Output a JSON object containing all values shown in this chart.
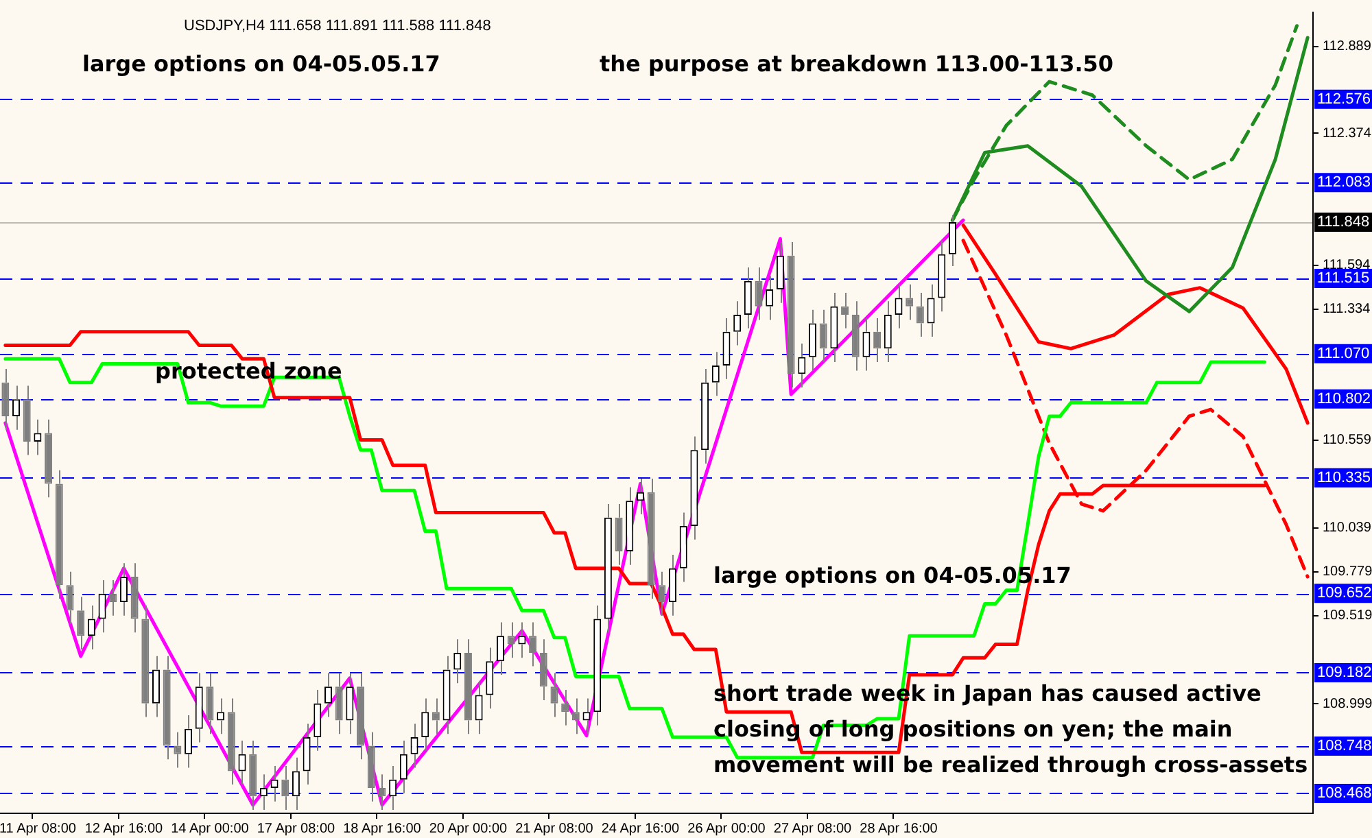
{
  "chart_data": {
    "type": "candlestick",
    "title": "USDJPY,H4 111.658 111.891 111.588 111.848",
    "categories": [
      null,
      null,
      null,
      "11 Apr 08:00",
      null,
      null,
      null,
      null,
      null,
      null,
      null,
      "12 Apr 16:00",
      null,
      null,
      null,
      null,
      null,
      null,
      null,
      "14 Apr 00:00",
      null,
      null,
      null,
      null,
      null,
      null,
      null,
      "17 Apr 08:00",
      null,
      null,
      null,
      null,
      null,
      null,
      null,
      "18 Apr 16:00",
      null,
      null,
      null,
      null,
      null,
      null,
      null,
      "20 Apr 00:00",
      null,
      null,
      null,
      null,
      null,
      null,
      null,
      "21 Apr 08:00",
      null,
      null,
      null,
      null,
      null,
      null,
      null,
      "24 Apr 16:00",
      null,
      null,
      null,
      null,
      null,
      null,
      null,
      "26 Apr 00:00",
      null,
      null,
      null,
      null,
      null,
      null,
      null,
      "27 Apr 08:00",
      null,
      null,
      null,
      null,
      null,
      null,
      null,
      "28 Apr 16:00",
      null,
      null,
      null,
      null,
      null,
      null,
      null,
      null,
      null,
      null,
      null,
      null,
      null,
      null,
      null,
      null,
      null,
      null,
      null,
      null,
      null,
      null,
      null,
      null,
      null,
      null,
      null,
      null,
      null,
      null,
      null,
      null,
      null,
      null,
      null,
      null,
      null,
      null
    ],
    "ohlc": [
      [
        110.9,
        110.98,
        110.62,
        110.7
      ],
      [
        110.7,
        110.88,
        110.62,
        110.8
      ],
      [
        110.8,
        110.88,
        110.47,
        110.55
      ],
      [
        110.55,
        110.68,
        110.47,
        110.6
      ],
      [
        110.6,
        110.68,
        110.22,
        110.3
      ],
      [
        110.3,
        110.38,
        109.62,
        109.7
      ],
      [
        109.7,
        109.78,
        109.47,
        109.55
      ],
      [
        109.55,
        109.63,
        109.32,
        109.4
      ],
      [
        109.4,
        109.58,
        109.32,
        109.5
      ],
      [
        109.5,
        109.73,
        109.42,
        109.65
      ],
      [
        109.65,
        109.73,
        109.52,
        109.6
      ],
      [
        109.6,
        109.83,
        109.52,
        109.75
      ],
      [
        109.75,
        109.83,
        109.42,
        109.5
      ],
      [
        109.5,
        109.58,
        108.92,
        109.0
      ],
      [
        109.0,
        109.28,
        108.92,
        109.2
      ],
      [
        109.2,
        109.28,
        108.67,
        108.75
      ],
      [
        108.75,
        108.83,
        108.62,
        108.7
      ],
      [
        108.7,
        108.93,
        108.62,
        108.85
      ],
      [
        108.85,
        109.18,
        108.77,
        109.1
      ],
      [
        109.1,
        109.18,
        108.82,
        108.9
      ],
      [
        108.9,
        109.03,
        108.82,
        108.95
      ],
      [
        108.95,
        109.03,
        108.52,
        108.6
      ],
      [
        108.6,
        108.78,
        108.52,
        108.7
      ],
      [
        108.7,
        108.78,
        108.37,
        108.45
      ],
      [
        108.45,
        108.58,
        108.37,
        108.5
      ],
      [
        108.5,
        108.63,
        108.42,
        108.55
      ],
      [
        108.55,
        108.63,
        108.37,
        108.45
      ],
      [
        108.45,
        108.68,
        108.37,
        108.6
      ],
      [
        108.6,
        108.88,
        108.52,
        108.8
      ],
      [
        108.8,
        109.08,
        108.72,
        109.0
      ],
      [
        109.0,
        109.18,
        108.92,
        109.1
      ],
      [
        109.1,
        109.18,
        108.82,
        108.9
      ],
      [
        108.9,
        109.18,
        108.82,
        109.1
      ],
      [
        109.1,
        109.18,
        108.67,
        108.75
      ],
      [
        108.75,
        108.83,
        108.42,
        108.5
      ],
      [
        108.5,
        108.58,
        108.37,
        108.45
      ],
      [
        108.45,
        108.63,
        108.37,
        108.55
      ],
      [
        108.55,
        108.78,
        108.47,
        108.7
      ],
      [
        108.7,
        108.88,
        108.62,
        108.8
      ],
      [
        108.8,
        109.03,
        108.72,
        108.95
      ],
      [
        108.95,
        109.03,
        108.82,
        108.9
      ],
      [
        108.9,
        109.28,
        108.82,
        109.2
      ],
      [
        109.2,
        109.38,
        109.12,
        109.3
      ],
      [
        109.3,
        109.38,
        108.82,
        108.9
      ],
      [
        108.9,
        109.13,
        108.82,
        109.05
      ],
      [
        109.05,
        109.33,
        108.97,
        109.25
      ],
      [
        109.25,
        109.48,
        109.17,
        109.4
      ],
      [
        109.4,
        109.48,
        109.27,
        109.35
      ],
      [
        109.35,
        109.48,
        109.27,
        109.4
      ],
      [
        109.4,
        109.48,
        109.22,
        109.3
      ],
      [
        109.3,
        109.38,
        109.02,
        109.1
      ],
      [
        109.1,
        109.18,
        108.92,
        109.0
      ],
      [
        109.0,
        109.08,
        108.87,
        108.95
      ],
      [
        108.95,
        109.03,
        108.82,
        108.9
      ],
      [
        108.9,
        109.03,
        108.82,
        108.95
      ],
      [
        108.95,
        109.58,
        108.87,
        109.5
      ],
      [
        109.5,
        110.18,
        109.42,
        110.1
      ],
      [
        110.1,
        110.18,
        109.82,
        109.9
      ],
      [
        109.9,
        110.28,
        109.82,
        110.2
      ],
      [
        110.2,
        110.33,
        110.12,
        110.25
      ],
      [
        110.25,
        110.33,
        109.62,
        109.7
      ],
      [
        109.7,
        109.78,
        109.52,
        109.6
      ],
      [
        109.6,
        109.88,
        109.52,
        109.8
      ],
      [
        109.8,
        110.13,
        109.72,
        110.05
      ],
      [
        110.05,
        110.58,
        109.97,
        110.5
      ],
      [
        110.5,
        110.98,
        110.42,
        110.9
      ],
      [
        110.9,
        111.08,
        110.82,
        111.0
      ],
      [
        111.0,
        111.28,
        110.92,
        111.2
      ],
      [
        111.2,
        111.38,
        111.12,
        111.3
      ],
      [
        111.3,
        111.58,
        111.22,
        111.5
      ],
      [
        111.5,
        111.58,
        111.27,
        111.35
      ],
      [
        111.35,
        111.53,
        111.27,
        111.45
      ],
      [
        111.45,
        111.73,
        111.37,
        111.65
      ],
      [
        111.65,
        111.73,
        110.87,
        110.95
      ],
      [
        110.95,
        111.13,
        110.87,
        111.05
      ],
      [
        111.05,
        111.33,
        110.97,
        111.25
      ],
      [
        111.25,
        111.33,
        111.02,
        111.1
      ],
      [
        111.1,
        111.43,
        111.02,
        111.35
      ],
      [
        111.35,
        111.43,
        111.22,
        111.3
      ],
      [
        111.3,
        111.38,
        110.97,
        111.05
      ],
      [
        111.05,
        111.28,
        110.97,
        111.2
      ],
      [
        111.2,
        111.28,
        111.02,
        111.1
      ],
      [
        111.1,
        111.38,
        111.02,
        111.3
      ],
      [
        111.3,
        111.48,
        111.22,
        111.4
      ],
      [
        111.4,
        111.48,
        111.27,
        111.35
      ],
      [
        111.35,
        111.43,
        111.17,
        111.25
      ],
      [
        111.25,
        111.48,
        111.17,
        111.4
      ],
      [
        111.4,
        111.74,
        111.32,
        111.658
      ],
      [
        111.658,
        111.891,
        111.588,
        111.848
      ],
      null,
      null,
      null,
      null,
      null,
      null,
      null,
      null,
      null,
      null,
      null,
      null,
      null,
      null,
      null,
      null,
      null,
      null,
      null,
      null,
      null,
      null,
      null,
      null,
      null,
      null,
      null,
      null,
      null,
      null,
      null,
      null,
      null
    ],
    "series": [
      {
        "type": "line",
        "color": "#ff0000",
        "line_style": "solid",
        "values": [
          111.12,
          111.12,
          111.12,
          111.12,
          111.12,
          111.12,
          111.12,
          111.2,
          111.2,
          111.2,
          111.2,
          111.2,
          111.2,
          111.2,
          111.2,
          111.2,
          111.2,
          111.2,
          111.12,
          111.12,
          111.12,
          111.12,
          111.04,
          111.04,
          111.04,
          110.81,
          110.81,
          110.81,
          110.81,
          110.81,
          110.81,
          110.81,
          110.81,
          110.56,
          110.56,
          110.56,
          110.41,
          110.41,
          110.41,
          110.41,
          110.13,
          110.13,
          110.13,
          110.13,
          110.13,
          110.13,
          110.13,
          110.13,
          110.13,
          110.13,
          110.13,
          110.01,
          110.01,
          109.8,
          109.8,
          109.8,
          109.8,
          109.8,
          109.71,
          109.71,
          109.71,
          109.57,
          109.41,
          109.41,
          109.32,
          109.32,
          109.32,
          108.95,
          108.95,
          108.95,
          108.95,
          108.95,
          108.95,
          108.95,
          108.71,
          108.71,
          108.71,
          108.71,
          108.71,
          108.71,
          108.71,
          108.71,
          108.71,
          108.71,
          109.17,
          109.17,
          109.17,
          109.17,
          109.17,
          109.27,
          109.27,
          109.27,
          109.35,
          109.35,
          109.35,
          109.67,
          109.94,
          110.14,
          110.24,
          110.24,
          110.24,
          110.24,
          110.29,
          110.29,
          110.29,
          110.29,
          110.29,
          110.29,
          110.29,
          110.29,
          110.29,
          110.29,
          110.29,
          110.29,
          110.29,
          110.29,
          110.29,
          110.29,
          null,
          null,
          null,
          null
        ]
      },
      {
        "type": "line",
        "color": "#00ff00",
        "line_style": "solid",
        "values": [
          111.04,
          111.04,
          111.04,
          111.04,
          111.04,
          111.04,
          110.9,
          110.9,
          110.9,
          111.01,
          111.01,
          111.01,
          111.01,
          111.01,
          111.01,
          111.01,
          111.01,
          110.78,
          110.78,
          110.78,
          110.76,
          110.76,
          110.76,
          110.76,
          110.76,
          110.93,
          110.93,
          110.93,
          110.93,
          110.93,
          110.93,
          110.93,
          110.7,
          110.5,
          110.5,
          110.26,
          110.26,
          110.26,
          110.26,
          110.02,
          110.02,
          109.68,
          109.68,
          109.68,
          109.68,
          109.68,
          109.68,
          109.68,
          109.55,
          109.55,
          109.55,
          109.39,
          109.39,
          109.16,
          109.16,
          109.16,
          109.16,
          109.16,
          108.97,
          108.97,
          108.97,
          108.97,
          108.8,
          108.8,
          108.8,
          108.8,
          108.8,
          108.8,
          108.68,
          108.68,
          108.68,
          108.68,
          108.68,
          108.68,
          108.68,
          108.68,
          108.87,
          108.87,
          108.87,
          108.87,
          108.87,
          108.91,
          108.91,
          108.91,
          109.4,
          109.4,
          109.4,
          109.4,
          109.4,
          109.4,
          109.4,
          109.59,
          109.59,
          109.67,
          109.67,
          110.06,
          110.46,
          110.7,
          110.7,
          110.78,
          110.78,
          110.78,
          110.78,
          110.78,
          110.78,
          110.78,
          110.78,
          110.9,
          110.9,
          110.9,
          110.9,
          110.9,
          111.02,
          111.02,
          111.02,
          111.02,
          111.02,
          111.02,
          null,
          null,
          null,
          null
        ]
      },
      {
        "type": "line",
        "color": "#ff00ff",
        "line_style": "solid",
        "values": [
          110.66,
          null,
          null,
          null,
          null,
          null,
          null,
          109.28,
          null,
          null,
          null,
          109.8,
          null,
          null,
          null,
          null,
          null,
          null,
          null,
          null,
          null,
          null,
          null,
          108.4,
          null,
          null,
          null,
          null,
          null,
          null,
          null,
          null,
          109.15,
          null,
          null,
          108.4,
          null,
          null,
          null,
          null,
          null,
          null,
          null,
          null,
          null,
          null,
          null,
          null,
          109.43,
          null,
          null,
          null,
          null,
          null,
          108.81,
          null,
          null,
          null,
          null,
          110.3,
          null,
          109.53,
          null,
          null,
          null,
          null,
          null,
          null,
          null,
          null,
          null,
          null,
          111.75,
          110.83,
          null,
          null,
          null,
          null,
          null,
          null,
          null,
          null,
          null,
          null,
          null,
          null,
          null,
          null,
          null,
          111.86,
          null,
          null,
          null,
          null,
          null,
          null,
          null,
          null,
          null,
          null,
          null,
          null,
          null,
          null,
          null,
          null,
          null,
          null,
          null,
          null,
          null,
          null,
          null,
          null,
          null,
          null,
          null,
          null,
          null,
          null,
          null,
          null
        ]
      },
      {
        "type": "line",
        "color": "#1e8c1e",
        "line_style": "solid",
        "values": [
          null,
          null,
          null,
          null,
          null,
          null,
          null,
          null,
          null,
          null,
          null,
          null,
          null,
          null,
          null,
          null,
          null,
          null,
          null,
          null,
          null,
          null,
          null,
          null,
          null,
          null,
          null,
          null,
          null,
          null,
          null,
          null,
          null,
          null,
          null,
          null,
          null,
          null,
          null,
          null,
          null,
          null,
          null,
          null,
          null,
          null,
          null,
          null,
          null,
          null,
          null,
          null,
          null,
          null,
          null,
          null,
          null,
          null,
          null,
          null,
          null,
          null,
          null,
          null,
          null,
          null,
          null,
          null,
          null,
          null,
          null,
          null,
          null,
          null,
          null,
          null,
          null,
          null,
          null,
          null,
          null,
          null,
          null,
          null,
          null,
          null,
          null,
          null,
          111.86,
          null,
          null,
          112.26,
          null,
          null,
          null,
          112.3,
          null,
          null,
          null,
          null,
          112.06,
          null,
          null,
          null,
          null,
          null,
          111.5,
          null,
          null,
          null,
          111.32,
          null,
          null,
          null,
          111.58,
          null,
          null,
          null,
          112.22,
          null,
          null,
          112.94
        ]
      },
      {
        "type": "line",
        "color": "#1e8c1e",
        "line_style": "dashed",
        "values": [
          null,
          null,
          null,
          null,
          null,
          null,
          null,
          null,
          null,
          null,
          null,
          null,
          null,
          null,
          null,
          null,
          null,
          null,
          null,
          null,
          null,
          null,
          null,
          null,
          null,
          null,
          null,
          null,
          null,
          null,
          null,
          null,
          null,
          null,
          null,
          null,
          null,
          null,
          null,
          null,
          null,
          null,
          null,
          null,
          null,
          null,
          null,
          null,
          null,
          null,
          null,
          null,
          null,
          null,
          null,
          null,
          null,
          null,
          null,
          null,
          null,
          null,
          null,
          null,
          null,
          null,
          null,
          null,
          null,
          null,
          null,
          null,
          null,
          null,
          null,
          null,
          null,
          null,
          null,
          null,
          null,
          null,
          null,
          null,
          null,
          null,
          null,
          null,
          111.86,
          null,
          112.1,
          null,
          null,
          112.42,
          null,
          null,
          null,
          112.68,
          null,
          null,
          null,
          112.6,
          null,
          null,
          null,
          null,
          112.3,
          null,
          null,
          null,
          112.1,
          null,
          null,
          null,
          112.22,
          null,
          null,
          null,
          112.66,
          null,
          113.01,
          null
        ]
      },
      {
        "type": "line",
        "color": "#ff0000",
        "line_style": "solid",
        "values": [
          null,
          null,
          null,
          null,
          null,
          null,
          null,
          null,
          null,
          null,
          null,
          null,
          null,
          null,
          null,
          null,
          null,
          null,
          null,
          null,
          null,
          null,
          null,
          null,
          null,
          null,
          null,
          null,
          null,
          null,
          null,
          null,
          null,
          null,
          null,
          null,
          null,
          null,
          null,
          null,
          null,
          null,
          null,
          null,
          null,
          null,
          null,
          null,
          null,
          null,
          null,
          null,
          null,
          null,
          null,
          null,
          null,
          null,
          null,
          null,
          null,
          null,
          null,
          null,
          null,
          null,
          null,
          null,
          null,
          null,
          null,
          null,
          null,
          null,
          null,
          null,
          null,
          null,
          null,
          null,
          null,
          null,
          null,
          null,
          null,
          null,
          null,
          null,
          null,
          111.83,
          null,
          null,
          111.54,
          null,
          null,
          null,
          111.14,
          null,
          null,
          111.1,
          null,
          null,
          null,
          111.18,
          null,
          null,
          null,
          null,
          111.42,
          null,
          null,
          111.46,
          null,
          null,
          null,
          111.34,
          null,
          null,
          null,
          110.98,
          null,
          110.66
        ]
      },
      {
        "type": "line",
        "color": "#ff0000",
        "line_style": "dashed",
        "values": [
          null,
          null,
          null,
          null,
          null,
          null,
          null,
          null,
          null,
          null,
          null,
          null,
          null,
          null,
          null,
          null,
          null,
          null,
          null,
          null,
          null,
          null,
          null,
          null,
          null,
          null,
          null,
          null,
          null,
          null,
          null,
          null,
          null,
          null,
          null,
          null,
          null,
          null,
          null,
          null,
          null,
          null,
          null,
          null,
          null,
          null,
          null,
          null,
          null,
          null,
          null,
          null,
          null,
          null,
          null,
          null,
          null,
          null,
          null,
          null,
          null,
          null,
          null,
          null,
          null,
          null,
          null,
          null,
          null,
          null,
          null,
          null,
          null,
          null,
          null,
          null,
          null,
          null,
          null,
          null,
          null,
          null,
          null,
          null,
          null,
          null,
          null,
          null,
          null,
          111.74,
          null,
          null,
          null,
          111.18,
          null,
          null,
          null,
          110.54,
          null,
          null,
          110.18,
          null,
          110.14,
          null,
          null,
          null,
          110.38,
          null,
          null,
          null,
          110.7,
          null,
          110.74,
          null,
          null,
          110.58,
          null,
          null,
          null,
          110.06,
          null,
          109.75
        ]
      }
    ],
    "ylim": [
      108.35,
      113.09
    ],
    "yticks": [
      112.889,
      112.374,
      111.594,
      111.334,
      110.559,
      110.039,
      109.779,
      109.519,
      108.999
    ],
    "ref_lines": [
      {
        "axis": "y",
        "value": 112.576,
        "label": "112.576",
        "color": "#0000ff",
        "line_style": "dashed"
      },
      {
        "axis": "y",
        "value": 112.083,
        "label": "112.083",
        "color": "#0000ff",
        "line_style": "dashed"
      },
      {
        "axis": "y",
        "value": 111.848,
        "label": "111.848",
        "color": "#000000",
        "line_style": "solid"
      },
      {
        "axis": "y",
        "value": 111.515,
        "label": "111.515",
        "color": "#0000ff",
        "line_style": "dashed"
      },
      {
        "axis": "y",
        "value": 111.07,
        "label": "111.070",
        "color": "#0000ff",
        "line_style": "dashed"
      },
      {
        "axis": "y",
        "value": 110.802,
        "label": "110.802",
        "color": "#0000ff",
        "line_style": "dashed"
      },
      {
        "axis": "y",
        "value": 110.335,
        "label": "110.335",
        "color": "#0000ff",
        "line_style": "dashed"
      },
      {
        "axis": "y",
        "value": 109.652,
        "label": "109.652",
        "color": "#0000ff",
        "line_style": "dashed"
      },
      {
        "axis": "y",
        "value": 109.182,
        "label": "109.182",
        "color": "#0000ff",
        "line_style": "dashed"
      },
      {
        "axis": "y",
        "value": 108.748,
        "label": "108.748",
        "color": "#0000ff",
        "line_style": "dashed"
      },
      {
        "axis": "y",
        "value": 108.468,
        "label": "108.468",
        "color": "#0000ff",
        "line_style": "dashed"
      }
    ],
    "annotations": [
      "large options on 04-05.05.17",
      "the purpose at breakdown 113.00-113.50",
      "protected zone",
      "large options on 04-05.05.17",
      "short trade week in Japan has caused active closing of long positions on yen; the main movement will be realized through cross-assets"
    ]
  }
}
